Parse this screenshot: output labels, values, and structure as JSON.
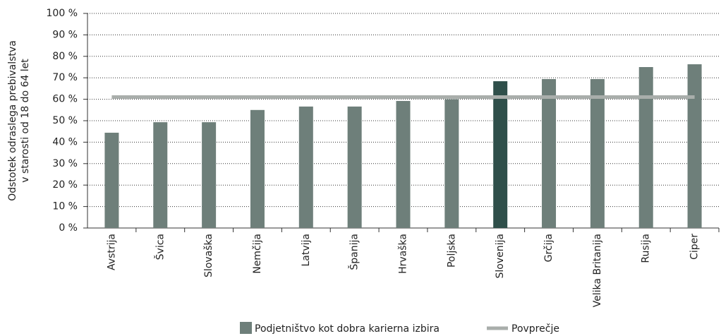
{
  "chart_data": {
    "type": "bar",
    "y_axis_label": [
      "Odstotek odraslega prebivalstva",
      "v starosti od 18 do 64 let"
    ],
    "categories": [
      "Avstrija",
      "Švica",
      "Slovaška",
      "Nemčija",
      "Latvija",
      "Španija",
      "Hrvaška",
      "Poljska",
      "Slovenija",
      "Grčija",
      "Velika Britanija",
      "Rusija",
      "Ciper"
    ],
    "series": [
      {
        "name": "Podjetništvo kot dobra karierna izbira",
        "type": "bar",
        "color": "#6e7f7a",
        "bar_colors": [
          "#6e7f7a",
          "#6e7f7a",
          "#6e7f7a",
          "#6e7f7a",
          "#6e7f7a",
          "#6e7f7a",
          "#6e7f7a",
          "#6e7f7a",
          "#2f4f4a",
          "#6e7f7a",
          "#6e7f7a",
          "#6e7f7a",
          "#6e7f7a"
        ],
        "values": [
          44.4,
          49.3,
          49.3,
          55,
          56.6,
          56.6,
          59.2,
          60,
          68.4,
          69.4,
          69.4,
          75,
          76.3
        ]
      },
      {
        "name": "Povprečje",
        "type": "line",
        "color": "#a9aeab",
        "values": [
          61,
          61,
          61,
          61,
          61,
          61,
          61,
          61,
          61,
          61,
          61,
          61,
          61
        ]
      }
    ],
    "ylim": [
      0,
      100
    ],
    "yticks": [
      {
        "value": 0,
        "label": "0 %"
      },
      {
        "value": 10,
        "label": "10 %"
      },
      {
        "value": 20,
        "label": "20 %"
      },
      {
        "value": 30,
        "label": "30 %"
      },
      {
        "value": 40,
        "label": "40 %"
      },
      {
        "value": 50,
        "label": "50 %"
      },
      {
        "value": 60,
        "label": "60 %"
      },
      {
        "value": 70,
        "label": "70 %"
      },
      {
        "value": 80,
        "label": "80 %"
      },
      {
        "value": 90,
        "label": "90 %"
      },
      {
        "value": 100,
        "label": "100 %"
      }
    ],
    "grid": true
  }
}
